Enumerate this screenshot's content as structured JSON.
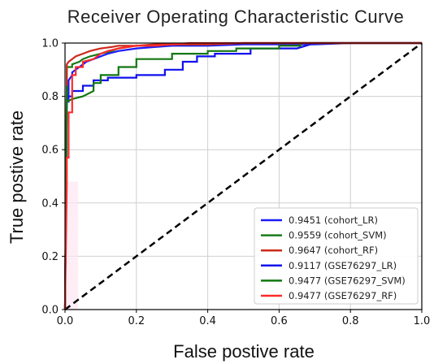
{
  "chart_data": {
    "type": "line",
    "title": "Receiver Operating Characteristic Curve",
    "xlabel": "False postive rate",
    "ylabel": "True postive rate",
    "xlim": [
      0,
      1
    ],
    "ylim": [
      0,
      1
    ],
    "xticks": [
      "0.0",
      "0.2",
      "0.4",
      "0.6",
      "0.8",
      "1.0"
    ],
    "yticks": [
      "0.0",
      "0.2",
      "0.4",
      "0.6",
      "0.8",
      "1.0"
    ],
    "grid": true,
    "legend_position": "bottom-right",
    "reference_line": {
      "x": [
        0,
        1
      ],
      "y": [
        0,
        1
      ],
      "style": "dashed",
      "color": "#000000"
    },
    "series": [
      {
        "name": "0.9451 (cohort_LR)",
        "color": "#1a1aff",
        "x": [
          0,
          0.005,
          0.01,
          0.01,
          0.02,
          0.02,
          0.03,
          0.04,
          0.05,
          0.06,
          0.08,
          0.1,
          0.12,
          0.15,
          0.2,
          0.25,
          0.3,
          0.35,
          0.4,
          0.5,
          0.6,
          0.7,
          0.8,
          0.9,
          1.0
        ],
        "y": [
          0,
          0.78,
          0.78,
          0.86,
          0.88,
          0.89,
          0.9,
          0.91,
          0.92,
          0.93,
          0.94,
          0.95,
          0.96,
          0.97,
          0.98,
          0.985,
          0.99,
          0.99,
          0.99,
          0.995,
          0.995,
          0.995,
          1.0,
          1.0,
          1.0
        ]
      },
      {
        "name": "0.9559 (cohort_SVM)",
        "color": "#1a7a1a",
        "x": [
          0,
          0.005,
          0.005,
          0.02,
          0.02,
          0.04,
          0.05,
          0.07,
          0.1,
          0.13,
          0.15,
          0.2,
          0.25,
          0.3,
          0.35,
          0.4,
          0.5,
          0.6,
          0.7,
          0.8,
          0.9,
          1.0
        ],
        "y": [
          0,
          0.84,
          0.91,
          0.91,
          0.92,
          0.93,
          0.94,
          0.95,
          0.96,
          0.97,
          0.98,
          0.99,
          0.99,
          0.995,
          0.995,
          0.995,
          1.0,
          1.0,
          1.0,
          1.0,
          1.0,
          1.0
        ]
      },
      {
        "name": "0.9647 (cohort_RF)",
        "color": "#cc2a1a",
        "x": [
          0,
          0.005,
          0.005,
          0.01,
          0.02,
          0.03,
          0.05,
          0.07,
          0.1,
          0.13,
          0.15,
          0.2,
          0.25,
          0.3,
          0.4,
          0.5,
          0.6,
          0.7,
          0.8,
          0.9,
          1.0
        ],
        "y": [
          0,
          0.86,
          0.92,
          0.93,
          0.94,
          0.95,
          0.96,
          0.97,
          0.98,
          0.985,
          0.99,
          0.99,
          0.995,
          0.995,
          0.995,
          1.0,
          1.0,
          1.0,
          1.0,
          1.0,
          1.0
        ]
      },
      {
        "name": "0.9117 (GSE76297_LR)",
        "color": "#1010ee",
        "x": [
          0,
          0.005,
          0.005,
          0.02,
          0.02,
          0.05,
          0.05,
          0.08,
          0.08,
          0.12,
          0.12,
          0.2,
          0.2,
          0.28,
          0.28,
          0.33,
          0.33,
          0.37,
          0.37,
          0.42,
          0.42,
          0.52,
          0.52,
          0.65,
          0.7,
          1.0
        ],
        "y": [
          0,
          0.78,
          0.8,
          0.8,
          0.82,
          0.82,
          0.84,
          0.84,
          0.86,
          0.86,
          0.87,
          0.87,
          0.88,
          0.88,
          0.9,
          0.9,
          0.93,
          0.93,
          0.95,
          0.95,
          0.96,
          0.96,
          0.98,
          0.98,
          1.0,
          1.0
        ]
      },
      {
        "name": "0.9477 (GSE76297_SVM)",
        "color": "#117711",
        "x": [
          0,
          0.005,
          0.005,
          0.02,
          0.02,
          0.05,
          0.05,
          0.08,
          0.08,
          0.1,
          0.1,
          0.15,
          0.15,
          0.2,
          0.2,
          0.3,
          0.3,
          0.4,
          0.4,
          0.48,
          0.48,
          0.6,
          0.6,
          0.66,
          0.66,
          1.0
        ],
        "y": [
          0,
          0.84,
          0.78,
          0.79,
          0.79,
          0.8,
          0.8,
          0.82,
          0.85,
          0.85,
          0.88,
          0.88,
          0.91,
          0.91,
          0.94,
          0.94,
          0.96,
          0.96,
          0.97,
          0.97,
          0.98,
          0.98,
          0.99,
          0.99,
          1.0,
          1.0
        ]
      },
      {
        "name": "0.9477 (GSE76297_RF)",
        "color": "#ff2a2a",
        "x": [
          0,
          0.005,
          0.005,
          0.01,
          0.01,
          0.02,
          0.02,
          0.03,
          0.03,
          0.05,
          0.05,
          0.08,
          0.1,
          0.12,
          0.15,
          0.2,
          0.25,
          0.3,
          0.35,
          0.4,
          0.5,
          0.6,
          0.7,
          0.8,
          0.9,
          1.0
        ],
        "y": [
          0,
          0.48,
          0.57,
          0.57,
          0.74,
          0.74,
          0.88,
          0.88,
          0.91,
          0.91,
          0.93,
          0.94,
          0.96,
          0.97,
          0.98,
          0.99,
          0.99,
          0.995,
          1.0,
          1.0,
          1.0,
          1.0,
          1.0,
          1.0,
          1.0,
          1.0
        ]
      }
    ]
  }
}
